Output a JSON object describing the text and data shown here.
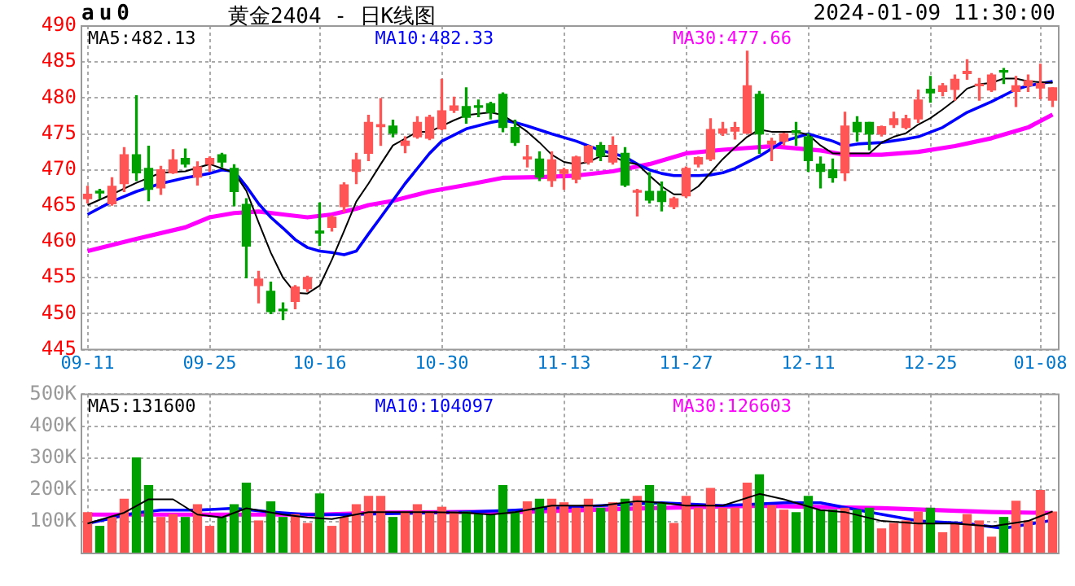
{
  "chart_data": [
    {
      "type": "candlestick",
      "title": "黄金2404 - 日K线图",
      "subtitle": "2024-01-09 11:30:00",
      "annotations": [
        "au0"
      ],
      "categories": [
        "09-11",
        null,
        null,
        null,
        null,
        null,
        null,
        null,
        null,
        null,
        "09-25",
        null,
        null,
        null,
        null,
        null,
        null,
        null,
        null,
        "10-16",
        null,
        null,
        null,
        null,
        null,
        null,
        null,
        null,
        null,
        "10-30",
        null,
        null,
        null,
        null,
        null,
        null,
        null,
        null,
        null,
        "11-13",
        null,
        null,
        null,
        null,
        null,
        null,
        null,
        null,
        null,
        "11-27",
        null,
        null,
        null,
        null,
        null,
        null,
        null,
        null,
        null,
        "12-11",
        null,
        null,
        null,
        null,
        null,
        null,
        null,
        null,
        null,
        "12-25",
        null,
        null,
        null,
        null,
        null,
        null,
        null,
        null,
        "01-08",
        null
      ],
      "ohlc": [
        [
          466.0,
          467.7,
          465.4,
          466.6
        ],
        [
          467.0,
          467.3,
          466.0,
          466.8
        ],
        [
          465.3,
          468.9,
          465.1,
          467.7
        ],
        [
          468.1,
          473.1,
          467.0,
          472.1
        ],
        [
          472.1,
          480.3,
          468.5,
          469.6
        ],
        [
          470.2,
          473.3,
          465.7,
          467.3
        ],
        [
          467.5,
          470.5,
          466.6,
          470.0
        ],
        [
          469.6,
          472.8,
          469.5,
          471.4
        ],
        [
          471.6,
          472.9,
          470.4,
          470.8
        ],
        [
          469.0,
          471.1,
          467.9,
          470.4
        ],
        [
          470.8,
          471.8,
          469.8,
          471.6
        ],
        [
          472.1,
          472.3,
          470.4,
          471.1
        ],
        [
          470.2,
          470.7,
          465.0,
          467.0
        ],
        [
          465.2,
          466.0,
          455.0,
          459.4
        ],
        [
          453.9,
          455.9,
          451.5,
          454.8
        ],
        [
          453.1,
          454.4,
          450.0,
          450.3
        ],
        [
          450.6,
          451.5,
          449.2,
          450.4
        ],
        [
          451.7,
          453.9,
          450.7,
          453.7
        ],
        [
          453.5,
          455.2,
          453.1,
          455.0
        ],
        [
          461.5,
          465.4,
          459.5,
          461.2
        ],
        [
          462.0,
          463.6,
          461.5,
          463.4
        ],
        [
          464.9,
          468.2,
          464.2,
          467.9
        ],
        [
          469.8,
          472.3,
          468.1,
          471.4
        ],
        [
          472.3,
          477.6,
          471.3,
          476.6
        ],
        [
          476.0,
          479.9,
          473.4,
          476.3
        ],
        [
          476.1,
          476.9,
          474.6,
          475.1
        ],
        [
          473.4,
          474.6,
          472.4,
          474.0
        ],
        [
          474.6,
          477.4,
          474.4,
          476.6
        ],
        [
          474.4,
          477.6,
          474.2,
          477.3
        ],
        [
          475.7,
          482.6,
          475.6,
          478.2
        ],
        [
          478.3,
          480.1,
          478.0,
          478.9
        ],
        [
          478.8,
          481.4,
          476.5,
          477.3
        ],
        [
          478.9,
          479.7,
          477.4,
          478.7
        ],
        [
          479.2,
          479.4,
          477.1,
          478.0
        ],
        [
          480.5,
          480.7,
          475.3,
          475.9
        ],
        [
          475.9,
          476.9,
          473.4,
          473.8
        ],
        [
          471.5,
          473.4,
          470.4,
          471.8
        ],
        [
          471.5,
          472.5,
          468.5,
          469.0
        ],
        [
          468.5,
          472.5,
          467.7,
          471.4
        ],
        [
          469.5,
          470.2,
          467.3,
          470.0
        ],
        [
          468.7,
          471.9,
          468.2,
          471.8
        ],
        [
          471.1,
          473.4,
          470.8,
          473.3
        ],
        [
          473.4,
          473.8,
          471.3,
          471.9
        ],
        [
          471.1,
          474.6,
          470.8,
          473.4
        ],
        [
          472.3,
          473.1,
          467.7,
          467.9
        ],
        [
          466.9,
          467.3,
          463.6,
          467.1
        ],
        [
          467.0,
          469.6,
          465.4,
          465.8
        ],
        [
          467.0,
          468.3,
          464.3,
          465.6
        ],
        [
          464.9,
          466.2,
          464.6,
          466.0
        ],
        [
          466.4,
          470.4,
          466.2,
          470.2
        ],
        [
          470.8,
          471.8,
          470.4,
          471.7
        ],
        [
          471.5,
          477.1,
          471.3,
          475.6
        ],
        [
          475.1,
          476.6,
          474.8,
          475.7
        ],
        [
          475.4,
          476.6,
          474.3,
          475.9
        ],
        [
          475.1,
          486.5,
          475.1,
          481.7
        ],
        [
          480.5,
          480.9,
          472.3,
          475.0
        ],
        [
          473.6,
          474.4,
          471.3,
          474.0
        ],
        [
          474.0,
          475.1,
          473.4,
          475.0
        ],
        [
          475.4,
          476.6,
          473.4,
          475.2
        ],
        [
          474.6,
          475.0,
          469.8,
          471.3
        ],
        [
          470.8,
          471.8,
          467.5,
          469.8
        ],
        [
          470.0,
          471.5,
          468.3,
          468.9
        ],
        [
          469.6,
          478.0,
          468.5,
          476.1
        ],
        [
          476.6,
          477.4,
          474.0,
          475.3
        ],
        [
          476.6,
          476.6,
          472.8,
          475.0
        ],
        [
          475.0,
          476.1,
          474.7,
          476.0
        ],
        [
          476.3,
          478.0,
          475.9,
          477.1
        ],
        [
          475.9,
          477.6,
          475.7,
          477.1
        ],
        [
          477.1,
          481.1,
          476.6,
          479.7
        ],
        [
          481.2,
          483.0,
          479.4,
          480.7
        ],
        [
          480.9,
          482.0,
          480.3,
          481.7
        ],
        [
          481.2,
          483.2,
          479.7,
          482.6
        ],
        [
          483.4,
          485.3,
          482.6,
          483.7
        ],
        [
          481.7,
          482.7,
          479.7,
          481.9
        ],
        [
          481.1,
          483.4,
          480.9,
          483.2
        ],
        [
          483.8,
          484.1,
          482.0,
          483.6
        ],
        [
          480.9,
          483.0,
          478.8,
          481.7
        ],
        [
          481.7,
          483.2,
          480.9,
          482.4
        ],
        [
          481.4,
          484.7,
          479.9,
          482.0
        ],
        [
          479.7,
          481.4,
          478.8,
          481.4
        ]
      ],
      "colors": [
        "#ff5555",
        "#00a000",
        "#ff5555",
        "#ff5555",
        "#00a000",
        "#00a000",
        "#ff5555",
        "#ff5555",
        "#00a000",
        "#ff5555",
        "#ff5555",
        "#00a000",
        "#00a000",
        "#00a000",
        "#ff5555",
        "#00a000",
        "#00a000",
        "#ff5555",
        "#ff5555",
        "#00a000",
        "#ff5555",
        "#ff5555",
        "#ff5555",
        "#ff5555",
        "#ff5555",
        "#00a000",
        "#ff5555",
        "#ff5555",
        "#ff5555",
        "#ff5555",
        "#ff5555",
        "#00a000",
        "#00a000",
        "#00a000",
        "#00a000",
        "#00a000",
        "#ff5555",
        "#00a000",
        "#ff5555",
        "#ff5555",
        "#ff5555",
        "#ff5555",
        "#00a000",
        "#ff5555",
        "#00a000",
        "#ff5555",
        "#00a000",
        "#00a000",
        "#ff5555",
        "#ff5555",
        "#ff5555",
        "#ff5555",
        "#ff5555",
        "#ff5555",
        "#ff5555",
        "#00a000",
        "#ff5555",
        "#ff5555",
        "#00a000",
        "#00a000",
        "#00a000",
        "#00a000",
        "#ff5555",
        "#00a000",
        "#00a000",
        "#ff5555",
        "#ff5555",
        "#ff5555",
        "#ff5555",
        "#00a000",
        "#ff5555",
        "#ff5555",
        "#ff5555",
        "#ff5555",
        "#ff5555",
        "#00a000",
        "#ff5555",
        "#ff5555",
        "#ff5555",
        "#ff5555"
      ],
      "series": [
        {
          "name": "MA5:482.13",
          "color": "#000000",
          "type": "line",
          "values": [
            465.1,
            null,
            466.6,
            null,
            468.2,
            null,
            469.6,
            null,
            469.8,
            null,
            470.8,
            null,
            469.6,
            467.1,
            462.7,
            458.5,
            455.0,
            452.9,
            452.8,
            453.9,
            457.5,
            461.5,
            465.6,
            468.1,
            470.8,
            473.4,
            null,
            475.3,
            475.3,
            476.1,
            476.9,
            477.6,
            null,
            478.0,
            477.6,
            476.5,
            475.3,
            473.8,
            472.1,
            471.1,
            470.8,
            471.1,
            471.9,
            471.9,
            471.1,
            470.8,
            469.2,
            467.7,
            466.6,
            466.6,
            467.7,
            469.6,
            471.5,
            473.1,
            474.6,
            475.6,
            475.3,
            null,
            475.3,
            474.9,
            473.4,
            472.3,
            472.3,
            null,
            472.3,
            473.8,
            474.6,
            475.1,
            476.3,
            477.2,
            478.4,
            479.7,
            481.3,
            481.9,
            482.1,
            482.7,
            482.7,
            482.3,
            null,
            482.1
          ]
        },
        {
          "name": "MA10:482.33",
          "color": "#0000ff",
          "type": "line",
          "values": [
            463.8,
            null,
            465.6,
            null,
            467.0,
            null,
            468.1,
            null,
            468.9,
            null,
            469.5,
            470.0,
            469.8,
            467.7,
            465.3,
            463.4,
            461.9,
            460.3,
            459.2,
            458.7,
            458.5,
            458.2,
            458.7,
            461.1,
            463.4,
            null,
            468.1,
            null,
            472.3,
            474.0,
            null,
            475.7,
            null,
            476.6,
            476.9,
            476.6,
            476.1,
            null,
            475.0,
            null,
            474.0,
            null,
            472.7,
            472.3,
            471.8,
            470.8,
            470.0,
            469.5,
            469.2,
            469.2,
            469.2,
            469.3,
            469.6,
            470.2,
            null,
            471.9,
            null,
            474.0,
            null,
            475.0,
            null,
            474.0,
            473.3,
            473.6,
            null,
            473.8,
            null,
            474.3,
            474.6,
            null,
            475.9,
            null,
            478.0,
            null,
            479.5,
            null,
            481.2,
            481.7,
            null,
            482.3
          ]
        },
        {
          "name": "MA30:477.66",
          "color": "#ff00ff",
          "type": "line",
          "values": [
            458.7,
            null,
            null,
            null,
            460.4,
            null,
            null,
            null,
            462.0,
            null,
            463.4,
            null,
            464.0,
            null,
            464.2,
            null,
            463.8,
            null,
            463.4,
            null,
            463.8,
            null,
            464.6,
            465.1,
            null,
            465.7,
            null,
            null,
            467.0,
            null,
            null,
            467.9,
            null,
            null,
            468.9,
            null,
            null,
            469.0,
            null,
            null,
            469.2,
            null,
            null,
            469.8,
            null,
            null,
            470.8,
            null,
            null,
            472.3,
            null,
            null,
            472.8,
            null,
            null,
            null,
            473.3,
            null,
            null,
            null,
            472.7,
            null,
            472.1,
            null,
            null,
            472.1,
            null,
            null,
            472.5,
            null,
            null,
            473.3,
            null,
            null,
            474.4,
            null,
            null,
            475.9,
            null,
            477.7
          ]
        }
      ],
      "ylim": [
        445,
        490
      ],
      "yticks": [
        445,
        450,
        455,
        460,
        465,
        470,
        475,
        480,
        485,
        490
      ],
      "grid": true,
      "legend": "top"
    },
    {
      "type": "bar",
      "categories": [
        null,
        null,
        null,
        null,
        null,
        null,
        null,
        null,
        null,
        null,
        null,
        null,
        null,
        null,
        null,
        null,
        null,
        null,
        null,
        null,
        null,
        null,
        null,
        null,
        null,
        null,
        null,
        null,
        null,
        null,
        null,
        null,
        null,
        null,
        null,
        null,
        null,
        null,
        null,
        null,
        null,
        null,
        null,
        null,
        null,
        null,
        null,
        null,
        null,
        null,
        null,
        null,
        null,
        null,
        null,
        null,
        null,
        null,
        null,
        null,
        null,
        null,
        null,
        null,
        null,
        null,
        null,
        null,
        null,
        null,
        null,
        null,
        null,
        null,
        null,
        null,
        null,
        null,
        null,
        null
      ],
      "values": [
        128000,
        85000,
        113000,
        170000,
        300000,
        213000,
        113000,
        122000,
        113000,
        153000,
        85000,
        113000,
        153000,
        221000,
        102000,
        162000,
        113000,
        122000,
        94000,
        187000,
        85000,
        113000,
        153000,
        179000,
        179000,
        113000,
        130000,
        153000,
        130000,
        145000,
        130000,
        130000,
        122000,
        122000,
        213000,
        130000,
        162000,
        170000,
        170000,
        159000,
        142000,
        170000,
        142000,
        159000,
        170000,
        179000,
        213000,
        159000,
        94000,
        179000,
        142000,
        204000,
        142000,
        142000,
        221000,
        247000,
        150000,
        136000,
        128000,
        179000,
        136000,
        136000,
        142000,
        136000,
        142000,
        77000,
        94000,
        102000,
        130000,
        142000,
        65000,
        94000,
        122000,
        102000,
        51000,
        113000,
        164000,
        102000,
        198000,
        130000
      ],
      "colors": [
        "#ff5555",
        "#00a000",
        "#ff5555",
        "#ff5555",
        "#00a000",
        "#00a000",
        "#ff5555",
        "#ff5555",
        "#00a000",
        "#ff5555",
        "#ff5555",
        "#00a000",
        "#00a000",
        "#00a000",
        "#ff5555",
        "#00a000",
        "#00a000",
        "#ff5555",
        "#ff5555",
        "#00a000",
        "#ff5555",
        "#ff5555",
        "#ff5555",
        "#ff5555",
        "#ff5555",
        "#00a000",
        "#ff5555",
        "#ff5555",
        "#ff5555",
        "#ff5555",
        "#ff5555",
        "#00a000",
        "#00a000",
        "#00a000",
        "#00a000",
        "#00a000",
        "#ff5555",
        "#00a000",
        "#ff5555",
        "#ff5555",
        "#ff5555",
        "#ff5555",
        "#00a000",
        "#ff5555",
        "#00a000",
        "#ff5555",
        "#00a000",
        "#00a000",
        "#ff5555",
        "#ff5555",
        "#ff5555",
        "#ff5555",
        "#ff5555",
        "#ff5555",
        "#ff5555",
        "#00a000",
        "#ff5555",
        "#ff5555",
        "#00a000",
        "#00a000",
        "#00a000",
        "#00a000",
        "#ff5555",
        "#00a000",
        "#00a000",
        "#ff5555",
        "#ff5555",
        "#ff5555",
        "#ff5555",
        "#00a000",
        "#ff5555",
        "#ff5555",
        "#ff5555",
        "#ff5555",
        "#ff5555",
        "#00a000",
        "#ff5555",
        "#ff5555",
        "#ff5555",
        "#ff5555"
      ],
      "series": [
        {
          "name": "MA5:131600",
          "color": "#000000",
          "type": "line",
          "values": [
            94000,
            null,
            null,
            128000,
            null,
            170000,
            null,
            170000,
            null,
            122000,
            null,
            113000,
            null,
            142000,
            null,
            null,
            122000,
            null,
            113000,
            null,
            108000,
            null,
            null,
            130000,
            null,
            130000,
            null,
            null,
            130000,
            null,
            null,
            128000,
            null,
            122000,
            null,
            130000,
            null,
            null,
            150000,
            null,
            null,
            null,
            150000,
            null,
            null,
            164000,
            null,
            159000,
            null,
            150000,
            null,
            null,
            150000,
            null,
            null,
            187000,
            null,
            170000,
            null,
            null,
            136000,
            null,
            130000,
            null,
            null,
            102000,
            null,
            null,
            94000,
            null,
            null,
            94000,
            null,
            null,
            85000,
            null,
            null,
            102000,
            null,
            132000
          ]
        },
        {
          "name": "MA10:104097",
          "color": "#0000ff",
          "type": "line",
          "values": [
            94000,
            null,
            null,
            null,
            128000,
            null,
            136000,
            null,
            null,
            136000,
            null,
            null,
            142000,
            null,
            null,
            130000,
            null,
            null,
            122000,
            null,
            null,
            122000,
            null,
            null,
            null,
            null,
            null,
            null,
            null,
            null,
            null,
            130000,
            null,
            null,
            null,
            136000,
            null,
            null,
            null,
            null,
            null,
            null,
            150000,
            null,
            null,
            null,
            null,
            159000,
            null,
            null,
            null,
            null,
            150000,
            null,
            null,
            null,
            null,
            159000,
            null,
            null,
            159000,
            null,
            null,
            null,
            130000,
            null,
            null,
            null,
            102000,
            null,
            null,
            null,
            94000,
            null,
            null,
            79000,
            null,
            null,
            null,
            104000
          ]
        },
        {
          "name": "MA30:126603",
          "color": "#ff00ff",
          "type": "line",
          "values": [
            122000,
            null,
            null,
            null,
            null,
            null,
            122000,
            null,
            null,
            null,
            null,
            null,
            null,
            122000,
            null,
            null,
            null,
            null,
            null,
            122000,
            null,
            null,
            null,
            null,
            128000,
            null,
            null,
            null,
            null,
            null,
            null,
            130000,
            null,
            null,
            null,
            130000,
            null,
            null,
            null,
            null,
            null,
            null,
            null,
            null,
            null,
            null,
            142000,
            null,
            null,
            null,
            null,
            null,
            null,
            null,
            null,
            150000,
            null,
            null,
            null,
            null,
            null,
            null,
            null,
            null,
            null,
            142000,
            null,
            null,
            null,
            null,
            null,
            null,
            null,
            null,
            130000,
            null,
            null,
            null,
            null,
            127000
          ]
        }
      ],
      "ylim": [
        0,
        500000
      ],
      "yticks": [
        {
          "value": 100000,
          "label": "100K"
        },
        {
          "value": 200000,
          "label": "200K"
        },
        {
          "value": 300000,
          "label": "300K"
        },
        {
          "value": 400000,
          "label": "400K"
        },
        {
          "value": 500000,
          "label": "500K"
        }
      ],
      "grid": true,
      "legend": "top",
      "tick_labels": "y"
    }
  ]
}
